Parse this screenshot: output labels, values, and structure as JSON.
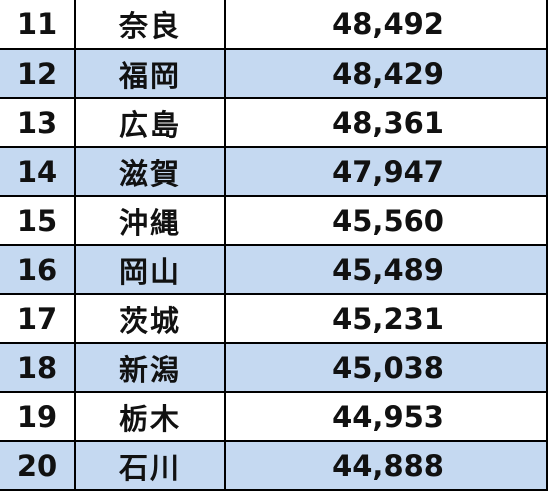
{
  "rows": [
    {
      "rank": "11",
      "prefecture": "奈良",
      "value": "48,492"
    },
    {
      "rank": "12",
      "prefecture": "福岡",
      "value": "48,429"
    },
    {
      "rank": "13",
      "prefecture": "広島",
      "value": "48,361"
    },
    {
      "rank": "14",
      "prefecture": "滋賀",
      "value": "47,947"
    },
    {
      "rank": "15",
      "prefecture": "沖縄",
      "value": "45,560"
    },
    {
      "rank": "16",
      "prefecture": "岡山",
      "value": "45,489"
    },
    {
      "rank": "17",
      "prefecture": "茨城",
      "value": "45,231"
    },
    {
      "rank": "18",
      "prefecture": "新潟",
      "value": "45,038"
    },
    {
      "rank": "19",
      "prefecture": "栃木",
      "value": "44,953"
    },
    {
      "rank": "20",
      "prefecture": "石川",
      "value": "44,888"
    }
  ],
  "colors": {
    "row_odd": "#ffffff",
    "row_even": "#c5d9f1",
    "border": "#000000"
  }
}
